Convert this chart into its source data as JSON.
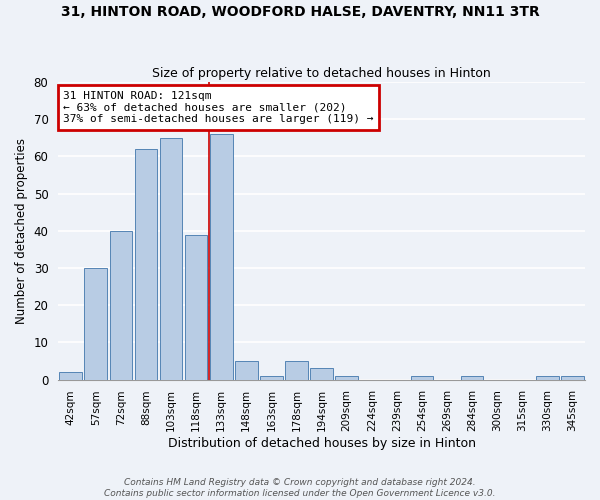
{
  "title": "31, HINTON ROAD, WOODFORD HALSE, DAVENTRY, NN11 3TR",
  "subtitle": "Size of property relative to detached houses in Hinton",
  "xlabel": "Distribution of detached houses by size in Hinton",
  "ylabel": "Number of detached properties",
  "bar_labels": [
    "42sqm",
    "57sqm",
    "72sqm",
    "88sqm",
    "103sqm",
    "118sqm",
    "133sqm",
    "148sqm",
    "163sqm",
    "178sqm",
    "194sqm",
    "209sqm",
    "224sqm",
    "239sqm",
    "254sqm",
    "269sqm",
    "284sqm",
    "300sqm",
    "315sqm",
    "330sqm",
    "345sqm"
  ],
  "bar_values": [
    2,
    30,
    40,
    62,
    65,
    39,
    66,
    5,
    1,
    5,
    3,
    1,
    0,
    0,
    1,
    0,
    1,
    0,
    0,
    1,
    1
  ],
  "bar_color": "#b8cce4",
  "bar_edge_color": "#5585b5",
  "ylim": [
    0,
    80
  ],
  "yticks": [
    0,
    10,
    20,
    30,
    40,
    50,
    60,
    70,
    80
  ],
  "vline_x_index": 5.5,
  "vline_color": "#cc0000",
  "annotation_title": "31 HINTON ROAD: 121sqm",
  "annotation_line1": "← 63% of detached houses are smaller (202)",
  "annotation_line2": "37% of semi-detached houses are larger (119) →",
  "annotation_box_color": "#cc0000",
  "footer_line1": "Contains HM Land Registry data © Crown copyright and database right 2024.",
  "footer_line2": "Contains public sector information licensed under the Open Government Licence v3.0.",
  "background_color": "#eef2f8",
  "grid_color": "#ffffff"
}
